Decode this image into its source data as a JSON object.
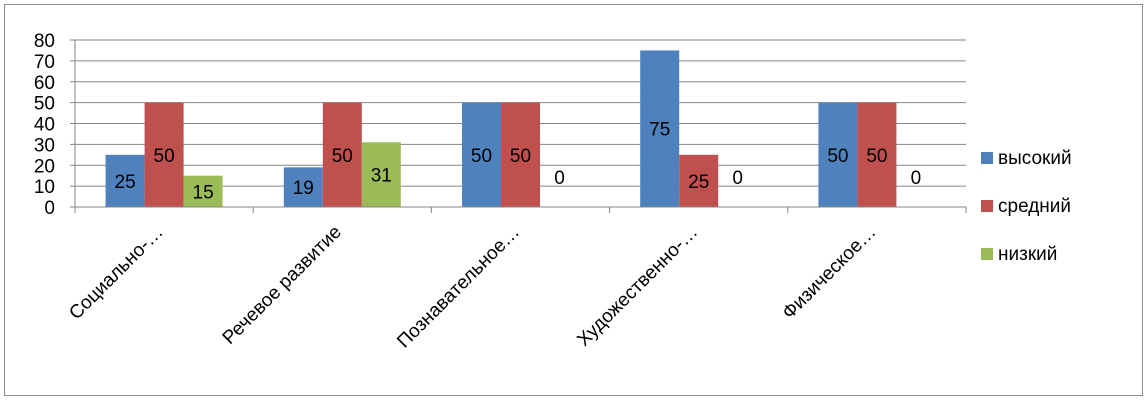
{
  "colors": {
    "series": [
      "#4F81BD",
      "#C0504D",
      "#9BBB59"
    ],
    "grid": "#868686",
    "axis": "#868686"
  },
  "chart_data": {
    "type": "bar",
    "categories": [
      "Социально-…",
      "Речевое развитие",
      "Познавательное…",
      "Художественно-…",
      "Физическое…"
    ],
    "series": [
      {
        "name": "высокий",
        "values": [
          25,
          19,
          50,
          75,
          50
        ]
      },
      {
        "name": "средний",
        "values": [
          50,
          50,
          50,
          25,
          50
        ]
      },
      {
        "name": "низкий",
        "values": [
          15,
          31,
          0,
          0,
          0
        ]
      }
    ],
    "yticks": [
      0,
      10,
      20,
      30,
      40,
      50,
      60,
      70,
      80
    ],
    "ylim": [
      0,
      80
    ],
    "grid": true,
    "legend": "right",
    "data_labels": true,
    "xtick_rotation": -45
  }
}
